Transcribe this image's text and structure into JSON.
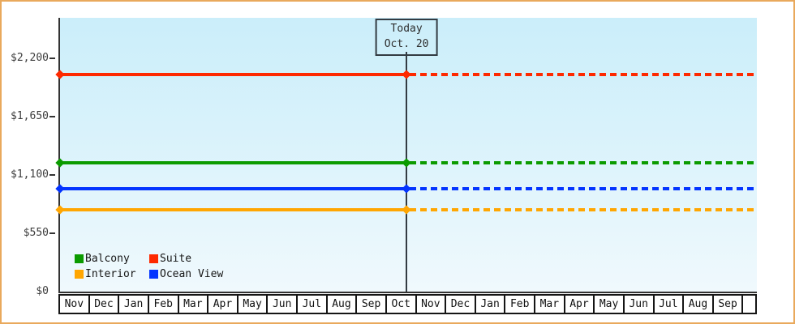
{
  "frame": {
    "border_color": "#e9a95c",
    "axis_color": "#333333"
  },
  "chart_data": {
    "type": "line",
    "title": "",
    "today_label": [
      "Today",
      "Oct. 20"
    ],
    "today": {
      "month_index": 11,
      "day": 20,
      "days_in_month": 31
    },
    "x_months": [
      "Nov",
      "Dec",
      "Jan",
      "Feb",
      "Mar",
      "Apr",
      "May",
      "Jun",
      "Jul",
      "Aug",
      "Sep",
      "Oct",
      "Nov",
      "Dec",
      "Jan",
      "Feb",
      "Mar",
      "Apr",
      "May",
      "Jun",
      "Jul",
      "Aug",
      "Sep"
    ],
    "y_ticks": [
      0,
      550,
      1100,
      1650,
      2200
    ],
    "y_tick_labels": [
      "$0",
      "$550",
      "$1,100",
      "$1,650",
      "$2,200"
    ],
    "ylim": [
      0,
      2580
    ],
    "series": [
      {
        "name": "Suite",
        "color": "#fe2900",
        "value": 2050
      },
      {
        "name": "Balcony",
        "color": "#0b9b00",
        "value": 1215
      },
      {
        "name": "Ocean View",
        "color": "#0434ff",
        "value": 970
      },
      {
        "name": "Interior",
        "color": "#ffa602",
        "value": 775
      }
    ],
    "line_style": {
      "solid_before_today": true,
      "dashed_after_today": true,
      "marker": "diamond"
    },
    "legend": {
      "order": [
        "Balcony",
        "Suite",
        "Interior",
        "Ocean View"
      ],
      "position": "bottom-left"
    },
    "plot_background": [
      "#cbeefa",
      "#d8f2fb",
      "#f0f9fd"
    ],
    "grid": "off"
  }
}
